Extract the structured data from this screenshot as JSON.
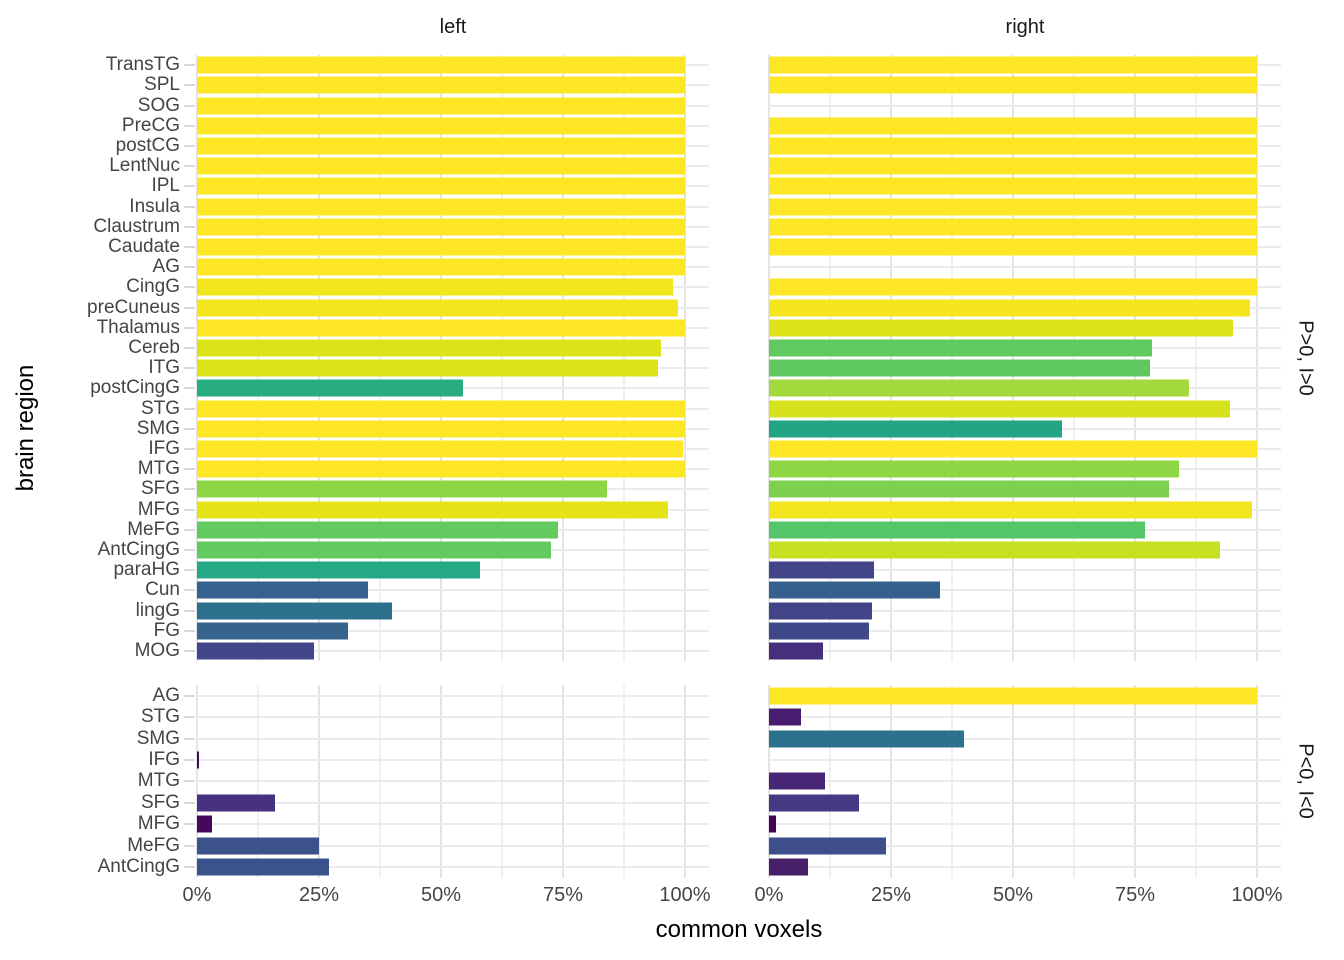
{
  "chart_data": {
    "type": "bar",
    "orientation": "horizontal",
    "xlabel": "common voxels",
    "ylabel": "brain region",
    "facet_columns": [
      "left",
      "right"
    ],
    "facet_rows": [
      "P>0, I>0",
      "P<0, I<0"
    ],
    "x_ticks": [
      0,
      25,
      50,
      75,
      100
    ],
    "x_tick_labels": [
      "0%",
      "25%",
      "50%",
      "75%",
      "100%"
    ],
    "x_minor_ticks": [
      12.5,
      37.5,
      62.5,
      87.5
    ],
    "xlim": [
      0,
      105
    ],
    "grid": true,
    "legend": false,
    "palette": "viridis, fill mapped to common-voxel percentage",
    "top_facet": {
      "strip": "P>0, I>0",
      "regions": [
        "TransTG",
        "SPL",
        "SOG",
        "PreCG",
        "postCG",
        "LentNuc",
        "IPL",
        "Insula",
        "Claustrum",
        "Caudate",
        "AG",
        "CingG",
        "preCuneus",
        "Thalamus",
        "Cereb",
        "ITG",
        "postCingG",
        "STG",
        "SMG",
        "IFG",
        "MTG",
        "SFG",
        "MFG",
        "MeFG",
        "AntCingG",
        "paraHG",
        "Cun",
        "lingG",
        "FG",
        "MOG"
      ],
      "left": {
        "values": [
          100,
          100,
          100,
          100,
          100,
          100,
          100,
          100,
          100,
          100,
          100,
          97.5,
          98.5,
          100,
          95,
          94.5,
          54.5,
          100,
          100,
          99.5,
          100,
          84,
          96.5,
          74,
          72.5,
          58,
          35,
          40,
          31,
          24
        ],
        "colors": [
          "#fde725",
          "#fde725",
          "#fde725",
          "#fde725",
          "#fde725",
          "#fde725",
          "#fde725",
          "#fde725",
          "#fde725",
          "#fde725",
          "#fde725",
          "#f1e51c",
          "#f4e61e",
          "#fde725",
          "#dce319",
          "#dce319",
          "#27ad81",
          "#fde725",
          "#fde725",
          "#fde725",
          "#fde725",
          "#8ed645",
          "#e5e419",
          "#62ca5f",
          "#62ca5f",
          "#25a884",
          "#34618d",
          "#2c718e",
          "#36648d",
          "#414788"
        ]
      },
      "right": {
        "values": [
          100,
          100,
          null,
          100,
          100,
          100,
          100,
          100,
          100,
          100,
          null,
          100,
          98.5,
          95,
          78.5,
          78,
          86,
          94.5,
          60,
          100,
          84,
          82,
          99,
          77,
          92.5,
          21.5,
          35,
          21,
          20.5,
          11
        ],
        "colors": [
          "#fde725",
          "#fde725",
          null,
          "#fde725",
          "#fde725",
          "#fde725",
          "#fde725",
          "#fde725",
          "#fde725",
          "#fde725",
          null,
          "#fde725",
          "#f6e620",
          "#dde31b",
          "#60ca60",
          "#5fc960",
          "#a3d93c",
          "#d5e21c",
          "#21a585",
          "#fde725",
          "#8fd645",
          "#7dd14f",
          "#f2e51d",
          "#55c569",
          "#c7e022",
          "#414487",
          "#355f8d",
          "#414487",
          "#3f4889",
          "#46307e"
        ]
      }
    },
    "bottom_facet": {
      "strip": "P<0, I<0",
      "regions": [
        "AG",
        "STG",
        "SMG",
        "IFG",
        "MTG",
        "SFG",
        "MFG",
        "MeFG",
        "AntCingG"
      ],
      "left": {
        "values": [
          null,
          null,
          null,
          0.5,
          null,
          16,
          3,
          25,
          27
        ],
        "colors": [
          null,
          null,
          null,
          "#440a5d",
          null,
          "#46327e",
          "#46085c",
          "#3b528b",
          "#3a538b"
        ]
      },
      "right": {
        "values": [
          100,
          6.5,
          40,
          null,
          11.5,
          18.5,
          1.5,
          24,
          8
        ],
        "colors": [
          "#fde725",
          "#481d6f",
          "#2c718e",
          null,
          "#482777",
          "#443a83",
          "#45045a",
          "#3d4e8a",
          "#462169"
        ]
      }
    }
  }
}
